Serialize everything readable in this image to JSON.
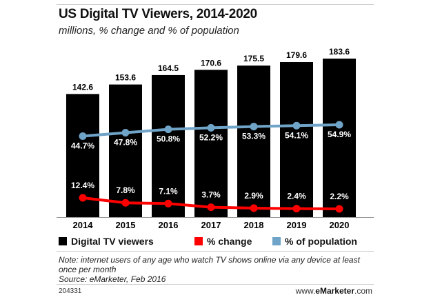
{
  "chart_data": {
    "type": "bar",
    "title": "US Digital TV Viewers, 2014-2020",
    "subtitle": "millions, % change and % of population",
    "categories": [
      "2014",
      "2015",
      "2016",
      "2017",
      "2018",
      "2019",
      "2020"
    ],
    "series": [
      {
        "name": "Digital TV viewers",
        "type": "bar",
        "color": "#000000",
        "values": [
          142.6,
          153.6,
          164.5,
          170.6,
          175.5,
          179.6,
          183.6
        ],
        "labels": [
          "142.6",
          "153.6",
          "164.5",
          "170.6",
          "175.5",
          "179.6",
          "183.6"
        ]
      },
      {
        "name": "% change",
        "type": "line",
        "color": "#ff0000",
        "values": [
          12.4,
          7.8,
          7.1,
          3.7,
          2.9,
          2.4,
          2.2
        ],
        "labels": [
          "12.4%",
          "7.8%",
          "7.1%",
          "3.7%",
          "2.9%",
          "2.4%",
          "2.2%"
        ]
      },
      {
        "name": "% of population",
        "type": "line",
        "color": "#6fa3c7",
        "values": [
          44.7,
          47.8,
          50.8,
          52.2,
          53.3,
          54.1,
          54.9
        ],
        "labels": [
          "44.7%",
          "47.8%",
          "50.8%",
          "52.2%",
          "53.3%",
          "54.1%",
          "54.9%"
        ]
      }
    ],
    "ylim": [
      0,
      200
    ],
    "legend": "bottom",
    "grid": false
  },
  "note": "Note: internet users of any age who watch TV shows online via any device at least once per month",
  "source": "Source: eMarketer, Feb 2016",
  "footer_id": "204331",
  "brand_prefix": "www.",
  "brand_name": "eMarketer",
  "brand_suffix": ".com"
}
